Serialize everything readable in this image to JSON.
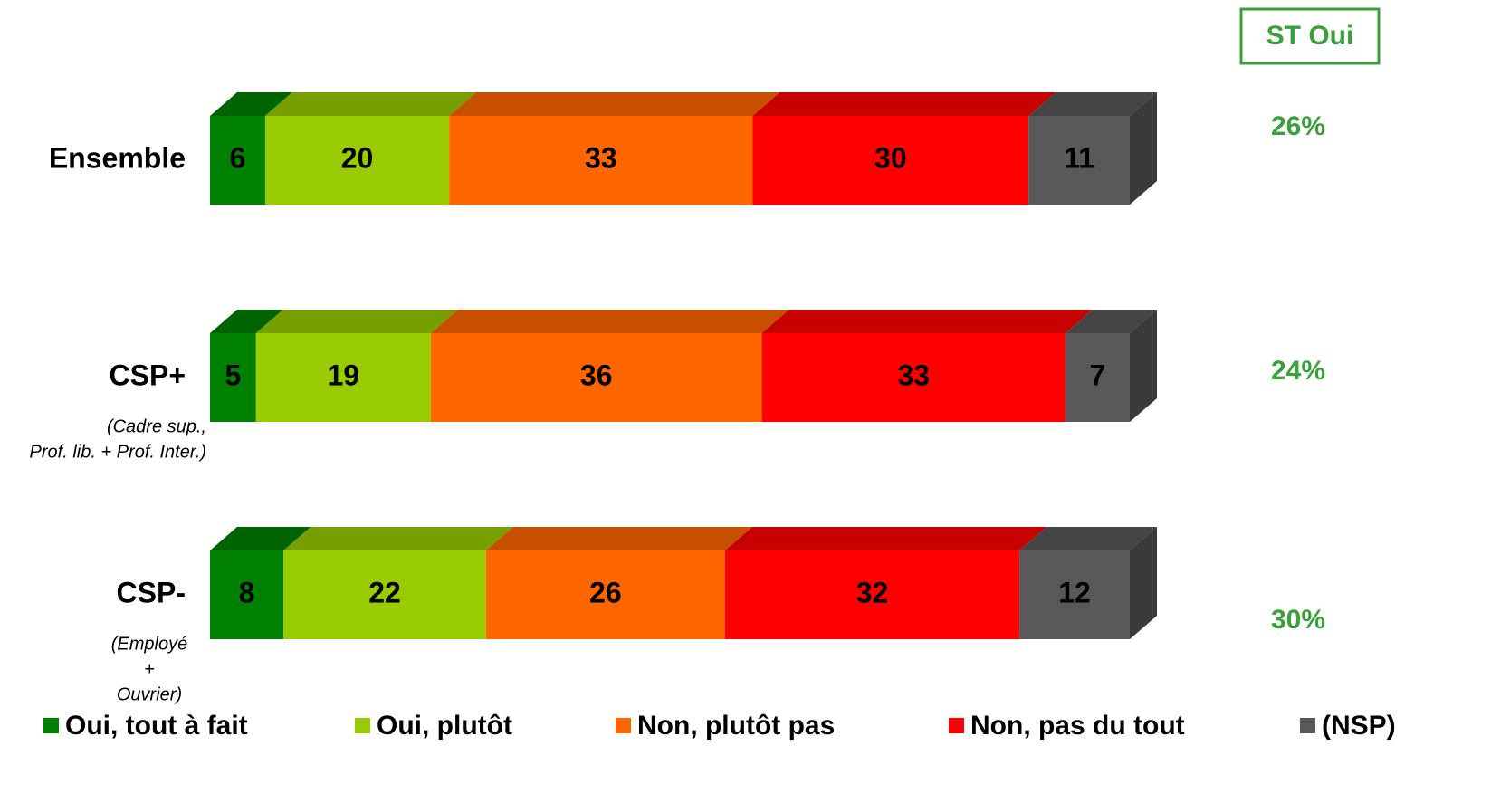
{
  "chart_data": {
    "type": "stacked-bar-3d",
    "categories": [
      "Ensemble",
      "CSP+",
      "CSP-"
    ],
    "category_notes": [
      null,
      [
        "(Cadre sup.,",
        "Prof. lib. + Prof. Inter.)"
      ],
      [
        "(Employé",
        "+",
        "Ouvrier)"
      ]
    ],
    "xlim": [
      0,
      100
    ],
    "series": [
      {
        "name": "Oui, tout à fait",
        "color": "#008000",
        "values": [
          6,
          5,
          8
        ]
      },
      {
        "name": "Oui, plutôt",
        "color": "#99cc00",
        "values": [
          20,
          19,
          22
        ]
      },
      {
        "name": "Non, plutôt pas",
        "color": "#ff6600",
        "values": [
          33,
          36,
          26
        ]
      },
      {
        "name": "Non, pas du tout",
        "color": "#ff0000",
        "values": [
          30,
          33,
          32
        ]
      },
      {
        "name": "(NSP)",
        "color": "#595959",
        "values": [
          11,
          7,
          12
        ]
      }
    ],
    "st_oui": {
      "label": "ST Oui",
      "color": "#3aa13a",
      "values": [
        26,
        24,
        30
      ],
      "value_labels": [
        "26%",
        "24%",
        "30%"
      ]
    }
  }
}
